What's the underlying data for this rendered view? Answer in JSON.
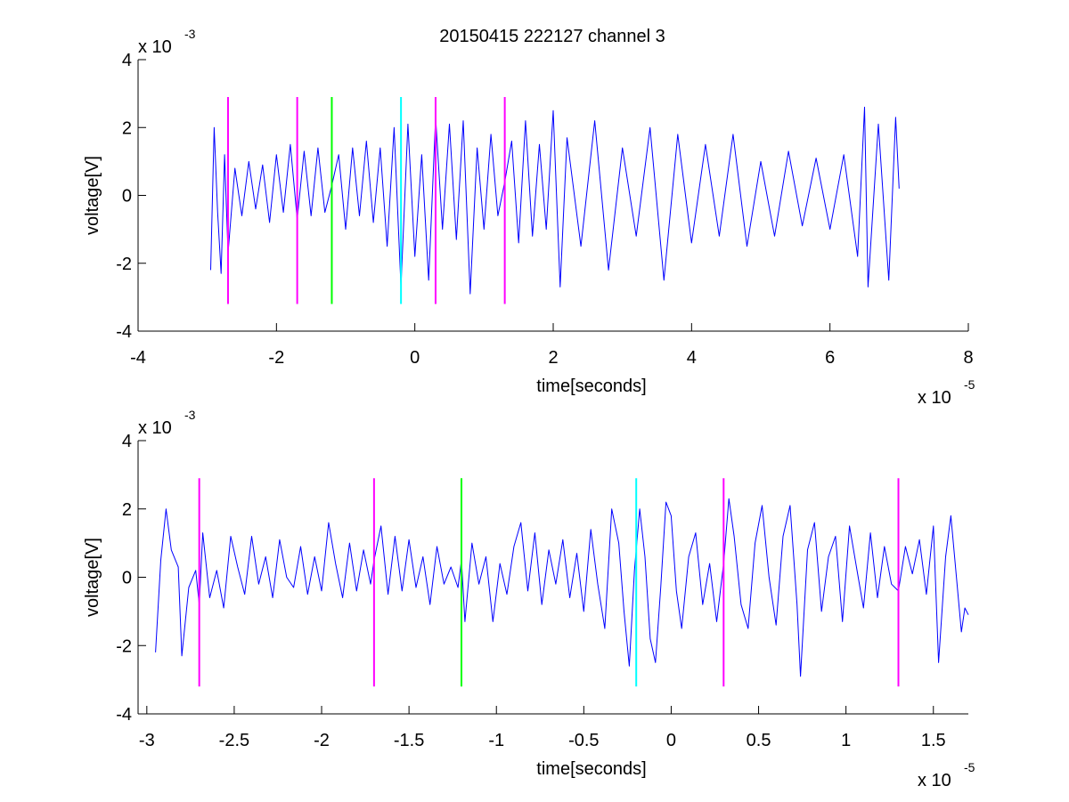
{
  "figure": {
    "title": "20150415 222127 channel 3"
  },
  "colors": {
    "signal": "#0000ff",
    "marker_magenta": "#ff00ff",
    "marker_green": "#00ff00",
    "marker_cyan": "#00ffff",
    "axis": "#000000",
    "background": "#ffffff"
  },
  "chart_data": [
    {
      "type": "line",
      "title": "20150415 222127 channel 3",
      "xlabel": "time[seconds]",
      "ylabel": "voltage[V]",
      "x_exponent_label": "x 10",
      "x_exponent": "-5",
      "y_exponent_label": "x 10",
      "y_exponent": "-3",
      "xlim": [
        -4,
        8
      ],
      "ylim": [
        -4,
        4
      ],
      "x_ticks": [
        -4,
        -2,
        0,
        2,
        4,
        6,
        8
      ],
      "x_tick_labels": [
        "-4",
        "-2",
        "0",
        "2",
        "4",
        "6",
        "8"
      ],
      "y_ticks": [
        -4,
        -2,
        0,
        2,
        4
      ],
      "y_tick_labels": [
        "-4",
        "-2",
        "0",
        "2",
        "4"
      ],
      "grid": false,
      "series": [
        {
          "color": "#0000ff",
          "x_range": [
            -2.95,
            7.0
          ],
          "y_range_approx": [
            -2.9,
            2.6
          ],
          "points": [
            [
              -2.95,
              -2.2
            ],
            [
              -2.9,
              2.0
            ],
            [
              -2.85,
              -0.5
            ],
            [
              -2.8,
              -2.3
            ],
            [
              -2.75,
              1.2
            ],
            [
              -2.7,
              -1.7
            ],
            [
              -2.6,
              0.8
            ],
            [
              -2.5,
              -0.6
            ],
            [
              -2.4,
              1.0
            ],
            [
              -2.3,
              -0.4
            ],
            [
              -2.2,
              0.9
            ],
            [
              -2.1,
              -0.8
            ],
            [
              -2.0,
              1.2
            ],
            [
              -1.9,
              -0.5
            ],
            [
              -1.8,
              1.5
            ],
            [
              -1.7,
              -0.7
            ],
            [
              -1.6,
              1.3
            ],
            [
              -1.5,
              -0.6
            ],
            [
              -1.4,
              1.4
            ],
            [
              -1.3,
              -0.5
            ],
            [
              -1.2,
              0.3
            ],
            [
              -1.1,
              1.2
            ],
            [
              -1.0,
              -1.0
            ],
            [
              -0.9,
              1.4
            ],
            [
              -0.8,
              -0.6
            ],
            [
              -0.7,
              1.6
            ],
            [
              -0.6,
              -0.8
            ],
            [
              -0.5,
              1.4
            ],
            [
              -0.4,
              -1.5
            ],
            [
              -0.3,
              2.0
            ],
            [
              -0.2,
              -2.7
            ],
            [
              -0.1,
              2.1
            ],
            [
              0.0,
              -1.8
            ],
            [
              0.1,
              1.2
            ],
            [
              0.2,
              -2.5
            ],
            [
              0.3,
              2.3
            ],
            [
              0.4,
              -1.0
            ],
            [
              0.5,
              2.1
            ],
            [
              0.6,
              -1.3
            ],
            [
              0.7,
              2.2
            ],
            [
              0.8,
              -2.9
            ],
            [
              0.9,
              1.4
            ],
            [
              1.0,
              -1.0
            ],
            [
              1.1,
              1.8
            ],
            [
              1.2,
              -0.6
            ],
            [
              1.3,
              0.4
            ],
            [
              1.4,
              1.6
            ],
            [
              1.5,
              -1.4
            ],
            [
              1.6,
              2.2
            ],
            [
              1.7,
              -1.2
            ],
            [
              1.8,
              1.5
            ],
            [
              1.9,
              -1.0
            ],
            [
              2.0,
              2.5
            ],
            [
              2.1,
              -2.7
            ],
            [
              2.2,
              1.7
            ],
            [
              2.4,
              -1.5
            ],
            [
              2.6,
              2.2
            ],
            [
              2.8,
              -2.2
            ],
            [
              3.0,
              1.4
            ],
            [
              3.2,
              -1.2
            ],
            [
              3.4,
              2.0
            ],
            [
              3.6,
              -2.5
            ],
            [
              3.8,
              1.8
            ],
            [
              4.0,
              -1.4
            ],
            [
              4.2,
              1.5
            ],
            [
              4.4,
              -1.2
            ],
            [
              4.6,
              1.8
            ],
            [
              4.8,
              -1.5
            ],
            [
              5.0,
              1.0
            ],
            [
              5.2,
              -1.2
            ],
            [
              5.4,
              1.3
            ],
            [
              5.6,
              -0.9
            ],
            [
              5.8,
              1.1
            ],
            [
              6.0,
              -1.0
            ],
            [
              6.2,
              1.2
            ],
            [
              6.4,
              -1.8
            ],
            [
              6.5,
              2.6
            ],
            [
              6.55,
              -2.7
            ],
            [
              6.7,
              2.1
            ],
            [
              6.85,
              -2.5
            ],
            [
              6.95,
              2.3
            ],
            [
              7.0,
              0.2
            ]
          ]
        }
      ],
      "markers": [
        {
          "x": -2.7,
          "color": "#ff00ff",
          "y_range": [
            -3.2,
            2.9
          ]
        },
        {
          "x": -1.7,
          "color": "#ff00ff",
          "y_range": [
            -3.2,
            2.9
          ]
        },
        {
          "x": -1.2,
          "color": "#00ff00",
          "y_range": [
            -3.2,
            2.9
          ]
        },
        {
          "x": -0.2,
          "color": "#00ffff",
          "y_range": [
            -3.2,
            2.9
          ]
        },
        {
          "x": 0.3,
          "color": "#ff00ff",
          "y_range": [
            -3.2,
            2.9
          ]
        },
        {
          "x": 1.3,
          "color": "#ff00ff",
          "y_range": [
            -3.2,
            2.9
          ]
        }
      ]
    },
    {
      "type": "line",
      "title": "",
      "xlabel": "time[seconds]",
      "ylabel": "voltage[V]",
      "x_exponent_label": "x 10",
      "x_exponent": "-5",
      "y_exponent_label": "x 10",
      "y_exponent": "-3",
      "xlim": [
        -3.05,
        1.7
      ],
      "ylim": [
        -4,
        4
      ],
      "x_ticks": [
        -3,
        -2.5,
        -2,
        -1.5,
        -1,
        -0.5,
        0,
        0.5,
        1,
        1.5
      ],
      "x_tick_labels": [
        "-3",
        "-2.5",
        "-2",
        "-1.5",
        "-1",
        "-0.5",
        "0",
        "0.5",
        "1",
        "1.5"
      ],
      "y_ticks": [
        -4,
        -2,
        0,
        2,
        4
      ],
      "y_tick_labels": [
        "-4",
        "-2",
        "0",
        "2",
        "4"
      ],
      "grid": false,
      "series": [
        {
          "color": "#0000ff",
          "x_range": [
            -2.95,
            1.7
          ],
          "y_range_approx": [
            -2.9,
            2.4
          ],
          "points": [
            [
              -2.95,
              -2.2
            ],
            [
              -2.92,
              0.5
            ],
            [
              -2.89,
              2.0
            ],
            [
              -2.86,
              0.8
            ],
            [
              -2.82,
              0.3
            ],
            [
              -2.8,
              -2.3
            ],
            [
              -2.76,
              -0.3
            ],
            [
              -2.72,
              0.2
            ],
            [
              -2.7,
              -0.8
            ],
            [
              -2.68,
              1.3
            ],
            [
              -2.64,
              -0.6
            ],
            [
              -2.6,
              0.2
            ],
            [
              -2.56,
              -0.9
            ],
            [
              -2.52,
              1.2
            ],
            [
              -2.48,
              0.3
            ],
            [
              -2.44,
              -0.5
            ],
            [
              -2.4,
              1.2
            ],
            [
              -2.36,
              -0.2
            ],
            [
              -2.32,
              0.6
            ],
            [
              -2.28,
              -0.6
            ],
            [
              -2.24,
              1.1
            ],
            [
              -2.2,
              0.0
            ],
            [
              -2.16,
              -0.3
            ],
            [
              -2.12,
              0.9
            ],
            [
              -2.08,
              -0.5
            ],
            [
              -2.04,
              0.6
            ],
            [
              -2.0,
              -0.4
            ],
            [
              -1.96,
              1.6
            ],
            [
              -1.92,
              0.4
            ],
            [
              -1.88,
              -0.6
            ],
            [
              -1.84,
              1.0
            ],
            [
              -1.8,
              -0.4
            ],
            [
              -1.76,
              0.8
            ],
            [
              -1.72,
              -0.2
            ],
            [
              -1.7,
              0.5
            ],
            [
              -1.66,
              1.5
            ],
            [
              -1.62,
              -0.5
            ],
            [
              -1.58,
              1.2
            ],
            [
              -1.54,
              -0.4
            ],
            [
              -1.5,
              1.1
            ],
            [
              -1.46,
              -0.3
            ],
            [
              -1.42,
              0.6
            ],
            [
              -1.38,
              -0.8
            ],
            [
              -1.34,
              0.9
            ],
            [
              -1.3,
              -0.2
            ],
            [
              -1.26,
              0.3
            ],
            [
              -1.22,
              -0.3
            ],
            [
              -1.2,
              0.5
            ],
            [
              -1.18,
              -1.3
            ],
            [
              -1.14,
              1.0
            ],
            [
              -1.1,
              -0.2
            ],
            [
              -1.06,
              0.6
            ],
            [
              -1.02,
              -1.3
            ],
            [
              -0.98,
              0.4
            ],
            [
              -0.94,
              -0.5
            ],
            [
              -0.9,
              0.9
            ],
            [
              -0.86,
              1.6
            ],
            [
              -0.82,
              -0.4
            ],
            [
              -0.78,
              1.3
            ],
            [
              -0.74,
              -0.8
            ],
            [
              -0.7,
              0.8
            ],
            [
              -0.66,
              -0.2
            ],
            [
              -0.62,
              1.1
            ],
            [
              -0.58,
              -0.6
            ],
            [
              -0.54,
              0.7
            ],
            [
              -0.5,
              -1.0
            ],
            [
              -0.46,
              1.4
            ],
            [
              -0.42,
              -0.2
            ],
            [
              -0.38,
              -1.5
            ],
            [
              -0.34,
              2.0
            ],
            [
              -0.3,
              1.0
            ],
            [
              -0.27,
              -1.0
            ],
            [
              -0.24,
              -2.6
            ],
            [
              -0.21,
              0.2
            ],
            [
              -0.18,
              2.0
            ],
            [
              -0.15,
              0.6
            ],
            [
              -0.12,
              -1.8
            ],
            [
              -0.09,
              -2.5
            ],
            [
              -0.06,
              -0.3
            ],
            [
              -0.03,
              2.2
            ],
            [
              0.0,
              1.8
            ],
            [
              0.03,
              -0.4
            ],
            [
              0.06,
              -1.5
            ],
            [
              0.1,
              0.6
            ],
            [
              0.14,
              1.3
            ],
            [
              0.18,
              -0.8
            ],
            [
              0.22,
              0.4
            ],
            [
              0.26,
              -1.3
            ],
            [
              0.3,
              0.4
            ],
            [
              0.33,
              2.3
            ],
            [
              0.36,
              1.2
            ],
            [
              0.4,
              -0.8
            ],
            [
              0.44,
              -1.5
            ],
            [
              0.48,
              1.0
            ],
            [
              0.52,
              2.1
            ],
            [
              0.56,
              0.0
            ],
            [
              0.6,
              -1.4
            ],
            [
              0.64,
              1.2
            ],
            [
              0.68,
              2.1
            ],
            [
              0.72,
              -0.8
            ],
            [
              0.74,
              -2.9
            ],
            [
              0.78,
              0.8
            ],
            [
              0.82,
              1.6
            ],
            [
              0.86,
              -1.0
            ],
            [
              0.9,
              0.6
            ],
            [
              0.94,
              1.2
            ],
            [
              0.98,
              -1.3
            ],
            [
              1.02,
              1.5
            ],
            [
              1.06,
              0.3
            ],
            [
              1.1,
              -0.9
            ],
            [
              1.14,
              1.3
            ],
            [
              1.18,
              -0.6
            ],
            [
              1.22,
              0.9
            ],
            [
              1.26,
              -0.2
            ],
            [
              1.3,
              -0.4
            ],
            [
              1.34,
              0.9
            ],
            [
              1.38,
              0.1
            ],
            [
              1.42,
              1.1
            ],
            [
              1.46,
              -0.5
            ],
            [
              1.5,
              1.5
            ],
            [
              1.53,
              -2.5
            ],
            [
              1.57,
              0.6
            ],
            [
              1.6,
              1.8
            ],
            [
              1.63,
              0.1
            ],
            [
              1.66,
              -1.6
            ],
            [
              1.68,
              -0.9
            ],
            [
              1.7,
              -1.1
            ]
          ]
        }
      ],
      "markers": [
        {
          "x": -2.7,
          "color": "#ff00ff",
          "y_range": [
            -3.2,
            2.9
          ]
        },
        {
          "x": -1.7,
          "color": "#ff00ff",
          "y_range": [
            -3.2,
            2.9
          ]
        },
        {
          "x": -1.2,
          "color": "#00ff00",
          "y_range": [
            -3.2,
            2.9
          ]
        },
        {
          "x": -0.2,
          "color": "#00ffff",
          "y_range": [
            -3.2,
            2.9
          ]
        },
        {
          "x": 0.3,
          "color": "#ff00ff",
          "y_range": [
            -3.2,
            2.9
          ]
        },
        {
          "x": 1.3,
          "color": "#ff00ff",
          "y_range": [
            -3.2,
            2.9
          ]
        }
      ]
    }
  ]
}
